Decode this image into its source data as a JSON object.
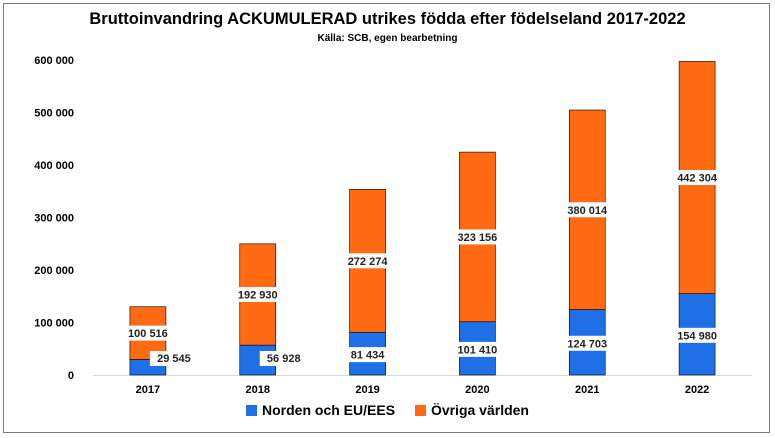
{
  "chart_data": {
    "type": "bar",
    "stacked": true,
    "title": "Bruttoinvandring ACKUMULERAD utrikes födda efter födelseland 2017-2022",
    "subtitle": "Källa: SCB, egen bearbetning",
    "categories": [
      "2017",
      "2018",
      "2019",
      "2020",
      "2021",
      "2022"
    ],
    "series": [
      {
        "name": "Norden och EU/EES",
        "color": "#1f6fe6",
        "values": [
          29545,
          56928,
          81434,
          101410,
          124703,
          154980
        ],
        "labels": [
          "29 545",
          "56 928",
          "81 434",
          "101 410",
          "124 703",
          "154 980"
        ]
      },
      {
        "name": "Övriga världen",
        "color": "#ff6a13",
        "values": [
          100516,
          192930,
          272274,
          323156,
          380014,
          442304
        ],
        "labels": [
          "100 516",
          "192 930",
          "272 274",
          "323 156",
          "380 014",
          "442 304"
        ]
      }
    ],
    "ylim": [
      0,
      600000
    ],
    "yticks": [
      0,
      100000,
      200000,
      300000,
      400000,
      500000,
      600000
    ],
    "ytick_labels": [
      "0",
      "100 000",
      "200 000",
      "300 000",
      "400 000",
      "500 000",
      "600 000"
    ],
    "grid": false,
    "legend_position": "bottom"
  }
}
